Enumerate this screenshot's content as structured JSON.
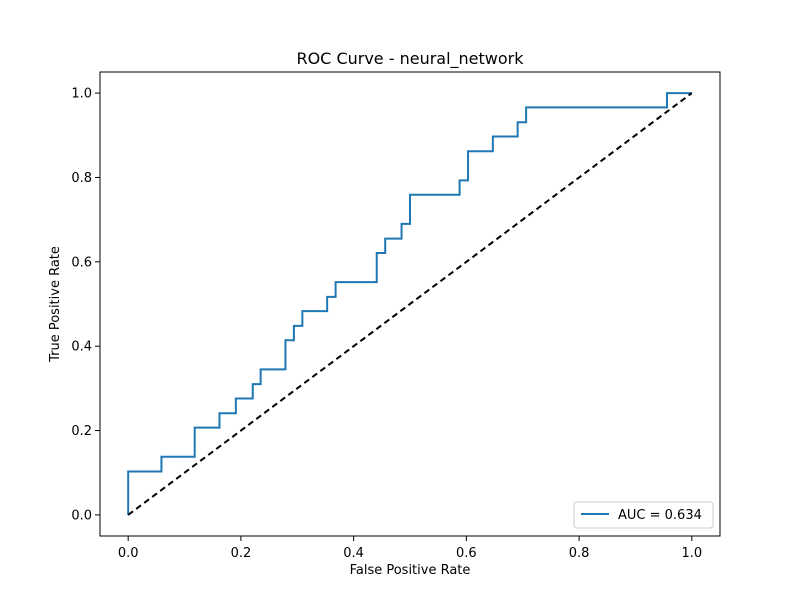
{
  "chart_data": {
    "type": "line",
    "title": "ROC Curve - neural_network",
    "xlabel": "False Positive Rate",
    "ylabel": "True Positive Rate",
    "xlim": [
      -0.05,
      1.05
    ],
    "ylim": [
      -0.05,
      1.05
    ],
    "xticks": [
      0.0,
      0.2,
      0.4,
      0.6,
      0.8,
      1.0
    ],
    "yticks": [
      0.0,
      0.2,
      0.4,
      0.6,
      0.8,
      1.0
    ],
    "xtick_labels": [
      "0.0",
      "0.2",
      "0.4",
      "0.6",
      "0.8",
      "1.0"
    ],
    "ytick_labels": [
      "0.0",
      "0.2",
      "0.4",
      "0.6",
      "0.8",
      "1.0"
    ],
    "grid": false,
    "legend_position": "bottom-right",
    "series": [
      {
        "name": "AUC = 0.634",
        "color": "#1f77b4",
        "style": "solid",
        "x": [
          0.0,
          0.0,
          0.059,
          0.059,
          0.118,
          0.118,
          0.162,
          0.162,
          0.191,
          0.191,
          0.221,
          0.221,
          0.235,
          0.235,
          0.279,
          0.279,
          0.294,
          0.294,
          0.309,
          0.309,
          0.353,
          0.353,
          0.368,
          0.368,
          0.441,
          0.441,
          0.456,
          0.456,
          0.485,
          0.485,
          0.5,
          0.5,
          0.588,
          0.588,
          0.603,
          0.603,
          0.647,
          0.647,
          0.691,
          0.691,
          0.706,
          0.706,
          0.956,
          0.956,
          1.0
        ],
        "y": [
          0.0,
          0.103,
          0.103,
          0.138,
          0.138,
          0.207,
          0.207,
          0.241,
          0.241,
          0.276,
          0.276,
          0.31,
          0.31,
          0.345,
          0.345,
          0.414,
          0.414,
          0.448,
          0.448,
          0.483,
          0.483,
          0.517,
          0.517,
          0.552,
          0.552,
          0.621,
          0.621,
          0.655,
          0.655,
          0.69,
          0.69,
          0.759,
          0.759,
          0.793,
          0.793,
          0.862,
          0.862,
          0.897,
          0.897,
          0.931,
          0.931,
          0.966,
          0.966,
          1.0,
          1.0
        ]
      },
      {
        "name": "",
        "color": "#000000",
        "style": "dashed",
        "x": [
          0.0,
          1.0
        ],
        "y": [
          0.0,
          1.0
        ]
      }
    ]
  }
}
